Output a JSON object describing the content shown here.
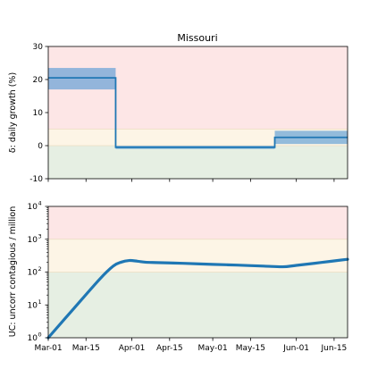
{
  "chart_data": [
    {
      "type": "line",
      "title": "Missouri",
      "ylabel": "δ: daily growth (%)",
      "ylim": [
        -10,
        30
      ],
      "yticks": [
        -10,
        0,
        10,
        20,
        30
      ],
      "xlim": [
        "2020-03-01",
        "2020-06-20"
      ],
      "bands": [
        {
          "from": -10,
          "to": 0,
          "color": "#e6efe3"
        },
        {
          "from": 0,
          "to": 5,
          "color": "#fdf5e6"
        },
        {
          "from": 5,
          "to": 30,
          "color": "#fde6e6"
        }
      ],
      "series": [
        {
          "color": "#1f77b4",
          "segments": [
            {
              "x_start": "2020-03-01",
              "x_end": "2020-03-26",
              "value": 20.5,
              "ci": [
                17,
                23.5
              ]
            },
            {
              "x_start": "2020-03-26",
              "x_end": "2020-05-24",
              "value": -0.5,
              "ci": [
                -1,
                0
              ]
            },
            {
              "x_start": "2020-05-24",
              "x_end": "2020-06-20",
              "value": 2.5,
              "ci": [
                0.5,
                4.5
              ]
            }
          ]
        }
      ]
    },
    {
      "type": "line",
      "ylabel": "UC: uncorr contagious / million",
      "yscale": "log",
      "ylim": [
        1,
        10000
      ],
      "yticks": [
        {
          "value": 1,
          "exp": "0"
        },
        {
          "value": 10,
          "exp": "1"
        },
        {
          "value": 100,
          "exp": "2"
        },
        {
          "value": 1000,
          "exp": "3"
        },
        {
          "value": 10000,
          "exp": "4"
        }
      ],
      "xlim": [
        "2020-03-01",
        "2020-06-20"
      ],
      "xticks": [
        "Mar-01",
        "Mar-15",
        "Apr-01",
        "Apr-15",
        "May-01",
        "May-15",
        "Jun-01",
        "Jun-15"
      ],
      "bands": [
        {
          "from": 1,
          "to": 100,
          "color": "#e6efe3"
        },
        {
          "from": 100,
          "to": 1000,
          "color": "#fdf5e6"
        },
        {
          "from": 1000,
          "to": 10000,
          "color": "#fde6e6"
        }
      ],
      "series": [
        {
          "color": "#1f77b4",
          "x": [
            "2020-03-01",
            "2020-03-10",
            "2020-03-20",
            "2020-03-25",
            "2020-03-28",
            "2020-03-31",
            "2020-04-03",
            "2020-04-06",
            "2020-04-10",
            "2020-04-15",
            "2020-04-20",
            "2020-05-01",
            "2020-05-10",
            "2020-05-20",
            "2020-05-27",
            "2020-06-01",
            "2020-06-10",
            "2020-06-20"
          ],
          "y": [
            1,
            7,
            60,
            150,
            200,
            225,
            215,
            200,
            195,
            190,
            185,
            172,
            163,
            152,
            145,
            160,
            195,
            245
          ]
        }
      ]
    }
  ]
}
